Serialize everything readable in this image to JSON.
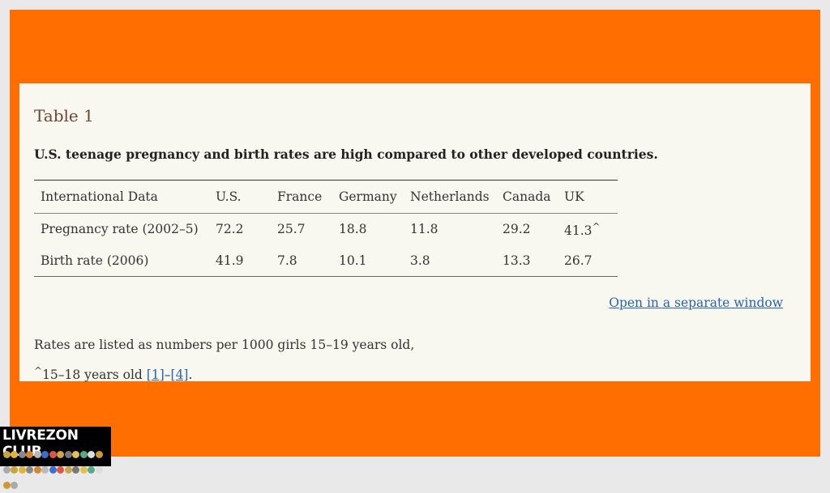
{
  "table": {
    "label": "Table 1",
    "caption": "U.S. teenage pregnancy and birth rates are high compared to other developed countries.",
    "headers": [
      "International Data",
      "U.S.",
      "France",
      "Germany",
      "Netherlands",
      "Canada",
      "UK"
    ],
    "rows": [
      {
        "label": "Pregnancy rate (2002–5)",
        "values": [
          "72.2",
          "25.7",
          "18.8",
          "11.8",
          "29.2",
          "41.3"
        ],
        "uk_mark": "^"
      },
      {
        "label": "Birth rate (2006)",
        "values": [
          "41.9",
          "7.8",
          "10.1",
          "3.8",
          "13.3",
          "26.7"
        ]
      }
    ]
  },
  "links": {
    "separate_window": "Open in a separate window"
  },
  "notes": {
    "line1": "Rates are listed as numbers per 1000 girls 15–19 years old,",
    "line2_mark": "^",
    "line2_text": "15–18 years old ",
    "ref1": "[1]",
    "ref_dash": "–",
    "ref4": "[4]",
    "period": "."
  },
  "logo": {
    "text": "LIVREZON CLUB"
  },
  "colors": {
    "frame": "#ff6e00",
    "panel": "#f8f7f0",
    "link": "#2a64a8",
    "table_label": "#6b4636"
  }
}
